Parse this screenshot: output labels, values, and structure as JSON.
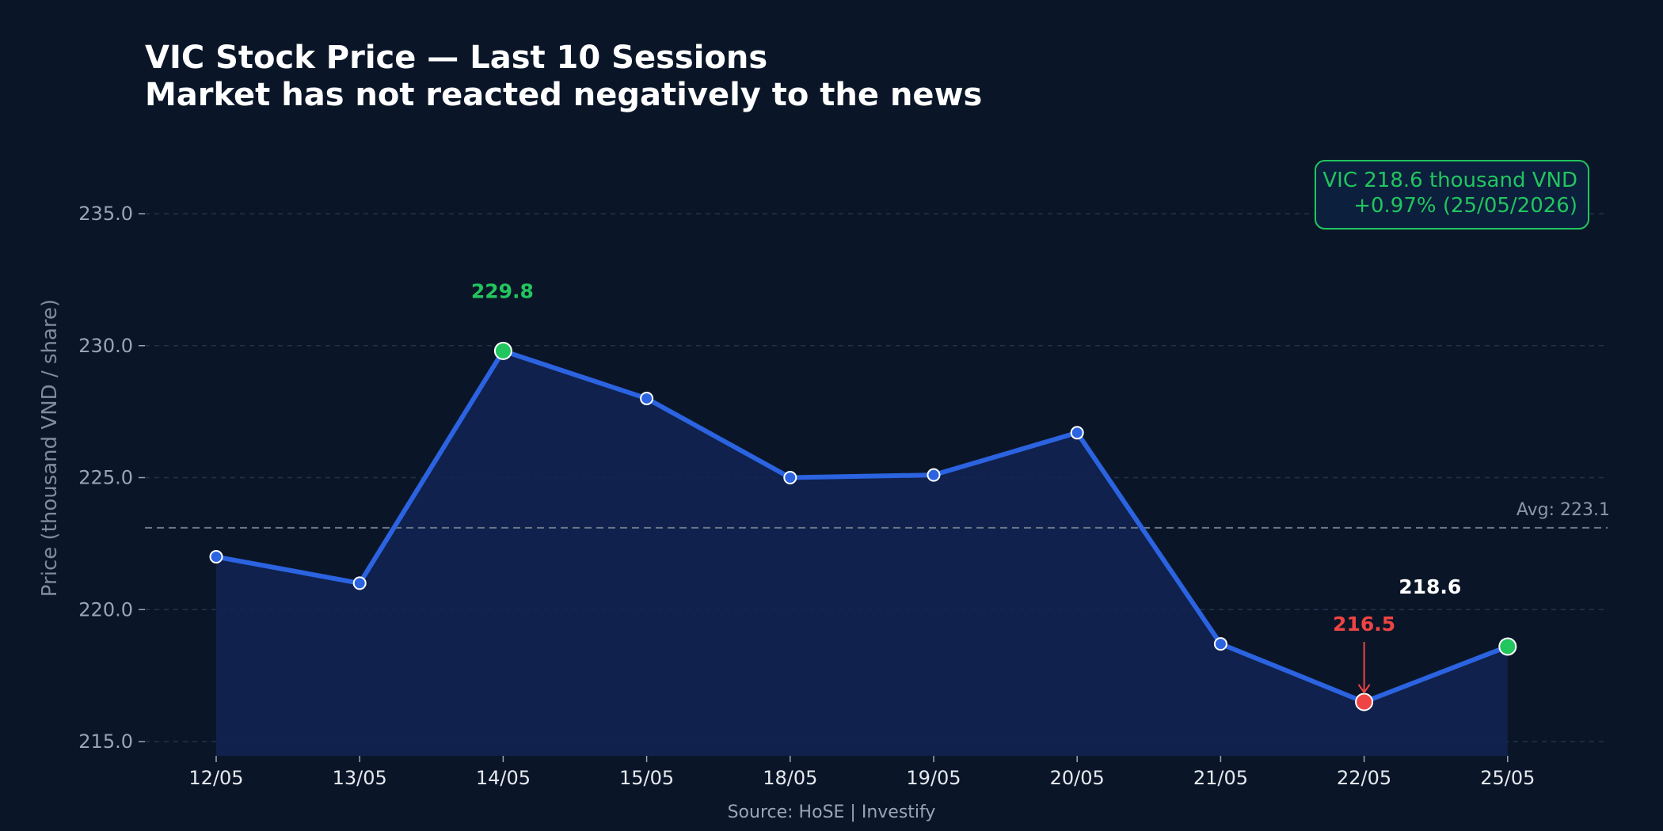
{
  "colors": {
    "background": "#0a1628",
    "line": "#2b63e0",
    "area": "#102352",
    "up": "#22c55e",
    "down": "#ef4444",
    "grid": "#22324a",
    "avg_line": "#6b7689",
    "text": "#ffffff"
  },
  "chart_data": {
    "type": "line",
    "title": "VIC Stock Price — Last 10 Sessions",
    "subtitle": "Market has not reacted negatively to the news",
    "ylabel": "Price (thousand VND / share)",
    "xlabel": "",
    "ylim": [
      214.5,
      237.5
    ],
    "yticks": [
      215.0,
      220.0,
      225.0,
      230.0,
      235.0
    ],
    "ytick_labels": [
      "215.0",
      "220.0",
      "225.0",
      "230.0",
      "235.0"
    ],
    "grid": true,
    "categories": [
      "12/05",
      "13/05",
      "14/05",
      "15/05",
      "18/05",
      "19/05",
      "20/05",
      "21/05",
      "22/05",
      "25/05"
    ],
    "series": [
      {
        "values": [
          222.0,
          221.0,
          229.8,
          228.0,
          225.0,
          225.1,
          226.7,
          218.7,
          216.5,
          218.6
        ]
      }
    ],
    "average": {
      "value": 223.1,
      "label": "Avg: 223.1"
    },
    "annotations": [
      {
        "index": 2,
        "text": "229.8",
        "kind": "high"
      },
      {
        "index": 8,
        "text": "216.5",
        "kind": "low"
      },
      {
        "index": 9,
        "text": "218.6",
        "kind": "last"
      }
    ],
    "info_box": {
      "line1": "VIC  218.6 thousand VND",
      "line2": "+0.97%  (25/05/2026)",
      "placement": "top-right"
    },
    "source": "Source: HoSE  |  Investify"
  }
}
